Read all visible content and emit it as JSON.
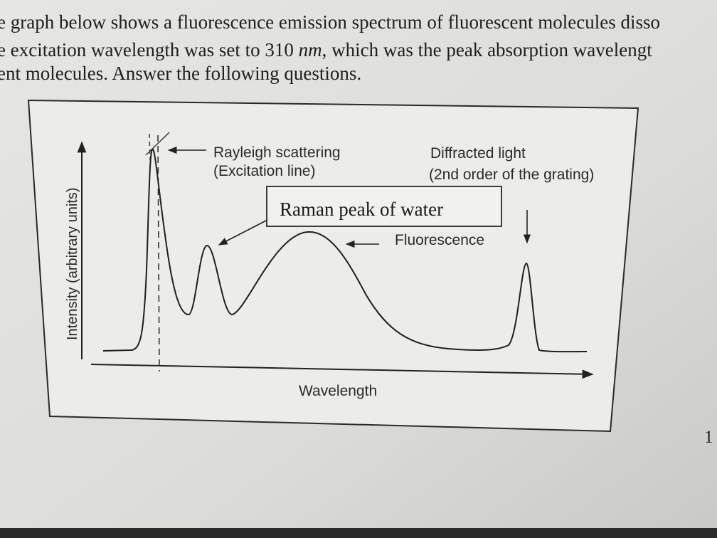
{
  "document": {
    "paragraph": {
      "line1": "e graph below shows a fluorescence emission spectrum of fluorescent molecules disso",
      "line2_start": "e excitation wavelength was set to 310 ",
      "line2_unit": "nm",
      "line2_end": ", which was the peak absorption wavelengt",
      "line3": "ent molecules. Answer the following questions."
    },
    "figure": {
      "y_axis_label": "Intensity (arbitrary units)",
      "x_axis_label": "Wavelength",
      "rayleigh_label": [
        "Rayleigh scattering",
        "(Excitation line)"
      ],
      "diffracted_label": [
        "Diffracted light",
        "(2nd order of the grating)"
      ],
      "raman_label": "Raman peak of water",
      "fluorescence_label": "Fluorescence"
    },
    "page_number": "1"
  }
}
